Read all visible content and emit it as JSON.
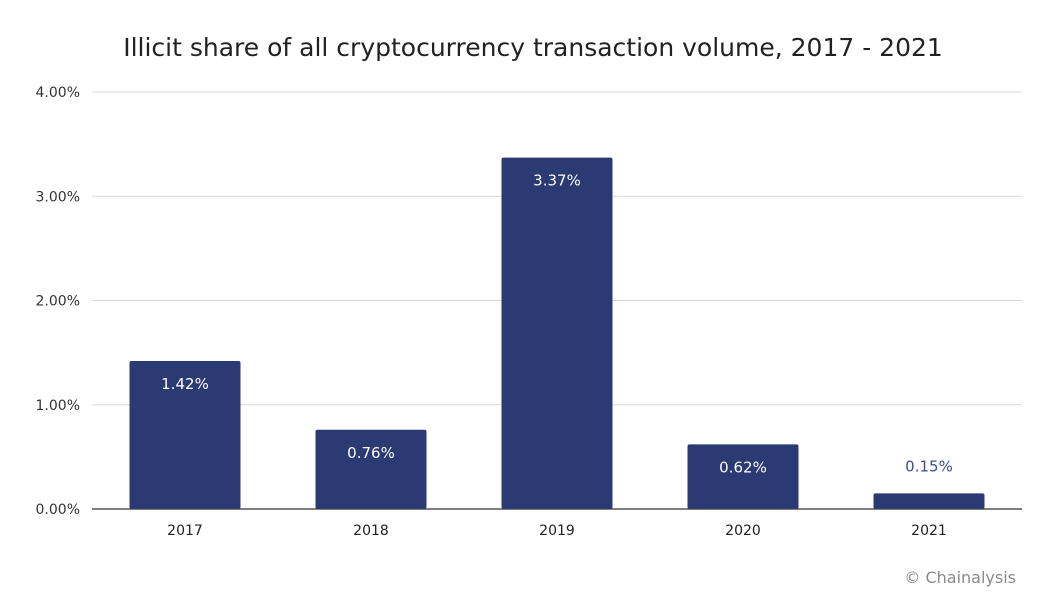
{
  "chart_data": {
    "type": "bar",
    "title": "Illicit share of all cryptocurrency transaction volume, 2017 - 2021",
    "xlabel": "",
    "ylabel": "",
    "categories": [
      "2017",
      "2018",
      "2019",
      "2020",
      "2021"
    ],
    "values": [
      1.42,
      0.76,
      3.37,
      0.62,
      0.15
    ],
    "data_labels": [
      "1.42%",
      "0.76%",
      "3.37%",
      "0.62%",
      "0.15%"
    ],
    "ylim": [
      0,
      4
    ],
    "yticks": [
      0,
      1,
      2,
      3,
      4
    ],
    "ytick_labels": [
      "0.00%",
      "1.00%",
      "2.00%",
      "3.00%",
      "4.00%"
    ],
    "grid": true,
    "legend": "none",
    "colors": {
      "bar": "#2b3a73",
      "label_inside": "#ffffff",
      "label_outside": "#3d4f8f",
      "grid": "#d9d9d9",
      "axis": "#555555"
    }
  },
  "credit": "© Chainalysis"
}
